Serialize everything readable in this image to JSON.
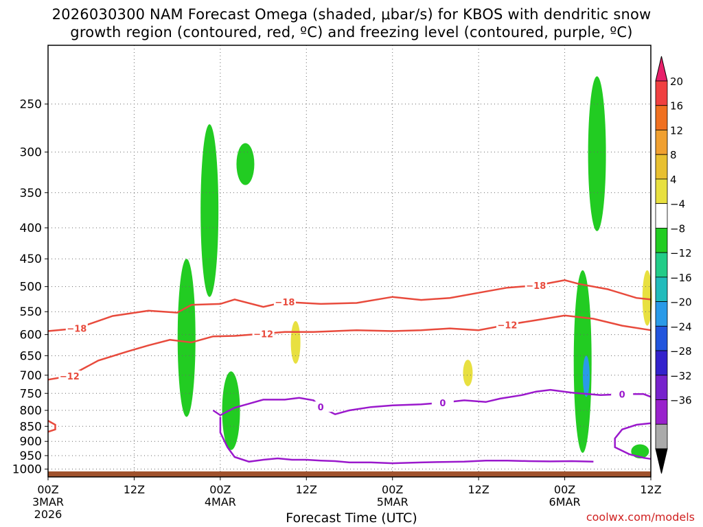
{
  "title_line1": "2026030300 NAM Forecast Omega (shaded, μbar/s) for KBOS with dendritic snow",
  "title_line2": "growth region (contoured, red, ºC) and freezing level (contoured, purple, ºC)",
  "source": "coolwx.com/models",
  "chart_data": {
    "type": "contour",
    "title": "2026030300 NAM Forecast Omega (shaded, μbar/s) for KBOS with dendritic snow growth region (contoured, red, ºC) and freezing level (contoured, purple, ºC)",
    "xlabel": "Forecast Time (UTC)",
    "ylabel": "",
    "x_range_hours": [
      0,
      84
    ],
    "y_scale": "log-pressure",
    "ylim": [
      1030,
      200
    ],
    "grid": true,
    "y_ticks": [
      250,
      300,
      350,
      400,
      450,
      500,
      550,
      600,
      650,
      700,
      750,
      800,
      850,
      900,
      950,
      1000
    ],
    "x_ticks": [
      {
        "hour": 0,
        "label": "00Z",
        "date": "3MAR",
        "year": "2026"
      },
      {
        "hour": 12,
        "label": "12Z",
        "date": "",
        "year": ""
      },
      {
        "hour": 24,
        "label": "00Z",
        "date": "4MAR",
        "year": ""
      },
      {
        "hour": 36,
        "label": "12Z",
        "date": "",
        "year": ""
      },
      {
        "hour": 48,
        "label": "00Z",
        "date": "5MAR",
        "year": ""
      },
      {
        "hour": 60,
        "label": "12Z",
        "date": "",
        "year": ""
      },
      {
        "hour": 72,
        "label": "00Z",
        "date": "6MAR",
        "year": ""
      },
      {
        "hour": 84,
        "label": "12Z",
        "date": "",
        "year": ""
      }
    ],
    "colorbar": {
      "labels": [
        "20",
        "16",
        "12",
        "8",
        "4",
        "−4",
        "−8",
        "−12",
        "−16",
        "−20",
        "−24",
        "−28",
        "−32",
        "−36"
      ],
      "colors": [
        "#e8206a",
        "#f04040",
        "#f07020",
        "#f0a030",
        "#e8c030",
        "#e8e040",
        "#ffffff",
        "#22cc22",
        "#22cc88",
        "#22bbbb",
        "#2a9ae8",
        "#2255dd",
        "#3322cc",
        "#7722cc",
        "#9922cc",
        "#aaaaaa",
        "#000000"
      ]
    },
    "contours": [
      {
        "level": -18,
        "color": "#e84a3c",
        "label": "−18",
        "points": [
          [
            0,
            592
          ],
          [
            4,
            586
          ],
          [
            9,
            559
          ],
          [
            14,
            548
          ],
          [
            18,
            552
          ],
          [
            20,
            536
          ],
          [
            24,
            534
          ],
          [
            26,
            525
          ],
          [
            30,
            540
          ],
          [
            33,
            530
          ],
          [
            38,
            534
          ],
          [
            43,
            532
          ],
          [
            48,
            520
          ],
          [
            52,
            526
          ],
          [
            56,
            522
          ],
          [
            60,
            512
          ],
          [
            64,
            502
          ],
          [
            68,
            498
          ],
          [
            72,
            488
          ],
          [
            74,
            495
          ],
          [
            78,
            505
          ],
          [
            82,
            522
          ],
          [
            84,
            525
          ]
        ]
      },
      {
        "level": -12,
        "color": "#e84a3c",
        "label": "−12",
        "points": [
          [
            0,
            712
          ],
          [
            3,
            702
          ],
          [
            7,
            662
          ],
          [
            11,
            640
          ],
          [
            14,
            625
          ],
          [
            17,
            612
          ],
          [
            20,
            618
          ],
          [
            23,
            604
          ],
          [
            26,
            603
          ],
          [
            30,
            598
          ],
          [
            33,
            594
          ],
          [
            37,
            594
          ],
          [
            43,
            590
          ],
          [
            48,
            592
          ],
          [
            52,
            590
          ],
          [
            56,
            586
          ],
          [
            60,
            590
          ],
          [
            64,
            578
          ],
          [
            68,
            568
          ],
          [
            72,
            558
          ],
          [
            76,
            565
          ],
          [
            80,
            580
          ],
          [
            84,
            590
          ]
        ]
      },
      {
        "level": 0,
        "color": "#9a18cc",
        "label": "0",
        "points": [
          [
            23,
            800
          ],
          [
            24,
            815
          ],
          [
            26,
            792
          ],
          [
            28,
            780
          ],
          [
            30,
            768
          ],
          [
            33,
            768
          ],
          [
            35,
            763
          ],
          [
            37,
            770
          ],
          [
            38,
            790
          ],
          [
            40,
            812
          ],
          [
            42,
            800
          ],
          [
            45,
            790
          ],
          [
            48,
            785
          ],
          [
            52,
            782
          ],
          [
            55,
            777
          ],
          [
            58,
            770
          ],
          [
            61,
            775
          ],
          [
            63,
            765
          ],
          [
            66,
            755
          ],
          [
            68,
            745
          ],
          [
            70,
            740
          ],
          [
            73,
            748
          ],
          [
            77,
            755
          ],
          [
            80,
            752
          ],
          [
            83,
            752
          ],
          [
            84,
            760
          ]
        ]
      },
      {
        "level": 0,
        "color": "#9a18cc",
        "label": "",
        "points": [
          [
            24,
            820
          ],
          [
            24,
            870
          ],
          [
            25,
            920
          ],
          [
            26,
            955
          ],
          [
            28,
            972
          ],
          [
            30,
            965
          ],
          [
            32,
            960
          ],
          [
            34,
            965
          ],
          [
            36,
            965
          ],
          [
            38,
            968
          ],
          [
            40,
            970
          ],
          [
            42,
            975
          ],
          [
            45,
            975
          ],
          [
            48,
            978
          ],
          [
            52,
            975
          ],
          [
            55,
            973
          ],
          [
            58,
            972
          ],
          [
            61,
            968
          ],
          [
            64,
            968
          ],
          [
            67,
            970
          ],
          [
            70,
            971
          ],
          [
            73,
            970
          ],
          [
            76,
            972
          ]
        ]
      },
      {
        "level": 0,
        "color": "#9a18cc",
        "label": "",
        "points": [
          [
            84,
            840
          ],
          [
            82,
            845
          ],
          [
            80,
            860
          ],
          [
            79,
            890
          ],
          [
            79,
            920
          ],
          [
            81,
            945
          ],
          [
            83,
            958
          ],
          [
            84,
            962
          ]
        ]
      },
      {
        "level": 0,
        "color": "#e84a3c",
        "label": "",
        "points": [
          [
            0,
            832
          ],
          [
            1,
            845
          ],
          [
            1,
            860
          ],
          [
            0,
            868
          ]
        ]
      }
    ],
    "shaded_regions": [
      {
        "color": "#22cc22",
        "value": "-4 to -8",
        "x_center": 19.3,
        "p_top": 450,
        "p_bottom": 820
      },
      {
        "color": "#22cc22",
        "value": "-4 to -8",
        "x_center": 22.5,
        "p_top": 270,
        "p_bottom": 520
      },
      {
        "color": "#22cc22",
        "value": "-4 to -8",
        "x_center": 27.5,
        "p_top": 290,
        "p_bottom": 340
      },
      {
        "color": "#22cc22",
        "value": "-4 to -8",
        "x_center": 25.5,
        "p_top": 690,
        "p_bottom": 930
      },
      {
        "color": "#22cc22",
        "value": "-4 to -8",
        "x_center": 74.5,
        "p_top": 470,
        "p_bottom": 940
      },
      {
        "color": "#22cc22",
        "value": "-4 to -8",
        "x_center": 76.5,
        "p_top": 225,
        "p_bottom": 405
      },
      {
        "color": "#22cc22",
        "value": "-4 to -8",
        "x_center": 82.5,
        "p_top": 910,
        "p_bottom": 960
      },
      {
        "color": "#e8e040",
        "value": "4 to 8",
        "x_center": 34.5,
        "p_top": 570,
        "p_bottom": 670
      },
      {
        "color": "#e8e040",
        "value": "4 to 8",
        "x_center": 58.5,
        "p_top": 660,
        "p_bottom": 730
      },
      {
        "color": "#e8e040",
        "value": "4 to 8",
        "x_center": 83.5,
        "p_top": 470,
        "p_bottom": 580
      },
      {
        "color": "#2a9ae8",
        "value": "-16 to -20",
        "x_center": 75.0,
        "p_top": 650,
        "p_bottom": 760
      }
    ]
  }
}
